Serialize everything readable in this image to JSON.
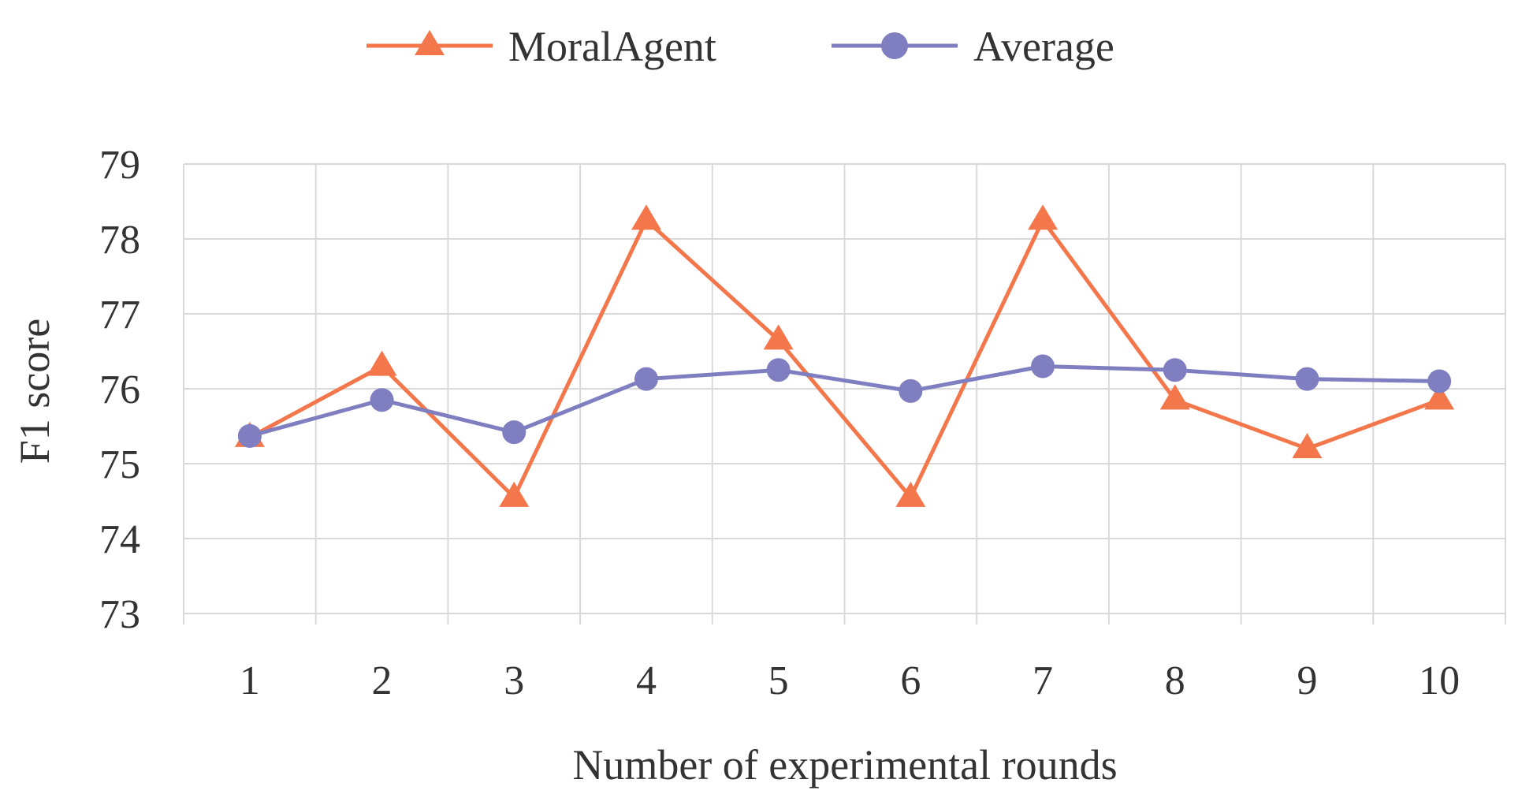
{
  "colors": {
    "moral_agent": "#f4774c",
    "average": "#7e7ec0",
    "grid": "#d9d9d9",
    "text": "#333333",
    "background": "#ffffff"
  },
  "chart_data": {
    "type": "line",
    "title": "",
    "xlabel": "Number of experimental rounds",
    "ylabel": "F1 score",
    "categories": [
      "1",
      "2",
      "3",
      "4",
      "5",
      "6",
      "7",
      "8",
      "9",
      "10"
    ],
    "ylim": [
      73,
      79
    ],
    "yticks": [
      73,
      74,
      75,
      76,
      77,
      78,
      79
    ],
    "ytick_labels": [
      "73",
      "74",
      "75",
      "76",
      "77",
      "78",
      "79"
    ],
    "grid": true,
    "legend_position": "top-center",
    "series": [
      {
        "name": "MoralAgent",
        "marker": "triangle",
        "color": "#f4774c",
        "values": [
          75.35,
          76.3,
          74.55,
          78.25,
          76.65,
          74.55,
          78.25,
          75.85,
          75.2,
          75.85
        ]
      },
      {
        "name": "Average",
        "marker": "circle",
        "color": "#7e7ec0",
        "values": [
          75.37,
          75.85,
          75.42,
          76.13,
          76.25,
          75.97,
          76.3,
          76.25,
          76.13,
          76.1
        ]
      }
    ]
  }
}
